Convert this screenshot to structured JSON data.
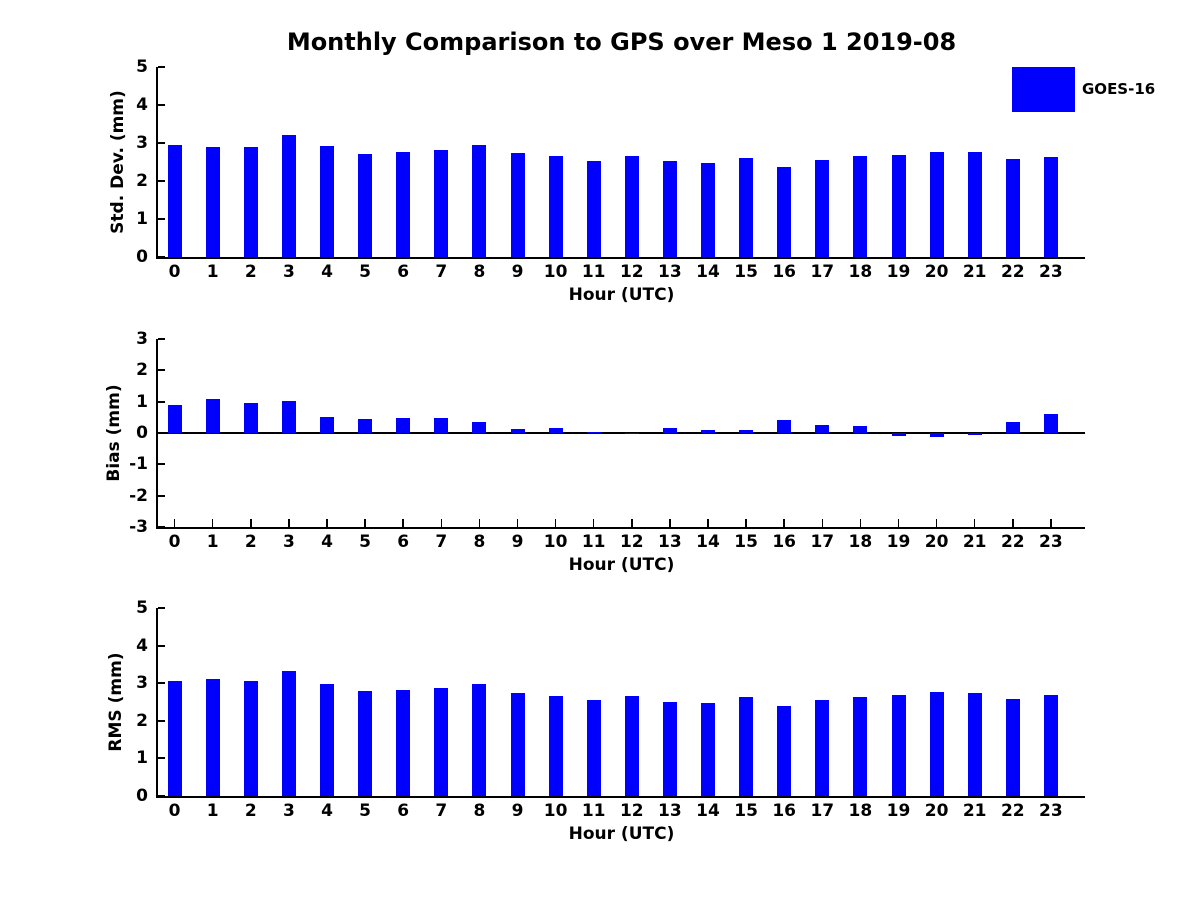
{
  "figure_title": "Monthly Comparison to GPS over Meso 1 2019-08",
  "legend": {
    "label": "GOES-16",
    "position": "top-right",
    "swatch_color": "#0000ff"
  },
  "colors": {
    "bar": "#0000ff",
    "axis": "#000000",
    "text": "#000000",
    "background": "#ffffff"
  },
  "chart_data": [
    {
      "type": "bar",
      "title": "",
      "ylabel": "Std. Dev. (mm)",
      "xlabel": "Hour (UTC)",
      "categories": [
        0,
        1,
        2,
        3,
        4,
        5,
        6,
        7,
        8,
        9,
        10,
        11,
        12,
        13,
        14,
        15,
        16,
        17,
        18,
        19,
        20,
        21,
        22,
        23
      ],
      "series": [
        {
          "name": "GOES-16",
          "values": [
            2.95,
            2.9,
            2.9,
            3.2,
            2.93,
            2.72,
            2.77,
            2.82,
            2.95,
            2.75,
            2.65,
            2.53,
            2.66,
            2.53,
            2.48,
            2.61,
            2.37,
            2.56,
            2.65,
            2.69,
            2.77,
            2.76,
            2.58,
            2.63
          ]
        }
      ],
      "ylim": [
        0,
        5
      ],
      "yticks": [
        0,
        1,
        2,
        3,
        4,
        5
      ],
      "grid": false,
      "legend_position": "top-right-outside"
    },
    {
      "type": "bar",
      "title": "",
      "ylabel": "Bias (mm)",
      "xlabel": "Hour (UTC)",
      "categories": [
        0,
        1,
        2,
        3,
        4,
        5,
        6,
        7,
        8,
        9,
        10,
        11,
        12,
        13,
        14,
        15,
        16,
        17,
        18,
        19,
        20,
        21,
        22,
        23
      ],
      "series": [
        {
          "name": "GOES-16",
          "values": [
            0.88,
            1.07,
            0.95,
            1.01,
            0.52,
            0.44,
            0.48,
            0.49,
            0.34,
            0.13,
            0.16,
            0.04,
            -0.04,
            0.15,
            0.09,
            0.09,
            0.42,
            0.26,
            0.22,
            -0.08,
            -0.14,
            -0.07,
            0.35,
            0.6
          ]
        }
      ],
      "ylim": [
        -3,
        3
      ],
      "yticks": [
        3,
        2,
        1,
        0,
        -1,
        -2,
        -3
      ],
      "grid": false,
      "zero_baseline": true
    },
    {
      "type": "bar",
      "title": "",
      "ylabel": "RMS (mm)",
      "xlabel": "Hour (UTC)",
      "categories": [
        0,
        1,
        2,
        3,
        4,
        5,
        6,
        7,
        8,
        9,
        10,
        11,
        12,
        13,
        14,
        15,
        16,
        17,
        18,
        19,
        20,
        21,
        22,
        23
      ],
      "series": [
        {
          "name": "GOES-16",
          "values": [
            3.07,
            3.1,
            3.06,
            3.33,
            2.97,
            2.78,
            2.82,
            2.87,
            2.97,
            2.75,
            2.67,
            2.54,
            2.67,
            2.5,
            2.47,
            2.62,
            2.4,
            2.56,
            2.63,
            2.69,
            2.77,
            2.75,
            2.58,
            2.68
          ]
        }
      ],
      "ylim": [
        0,
        5
      ],
      "yticks": [
        0,
        1,
        2,
        3,
        4,
        5
      ],
      "grid": false
    }
  ]
}
